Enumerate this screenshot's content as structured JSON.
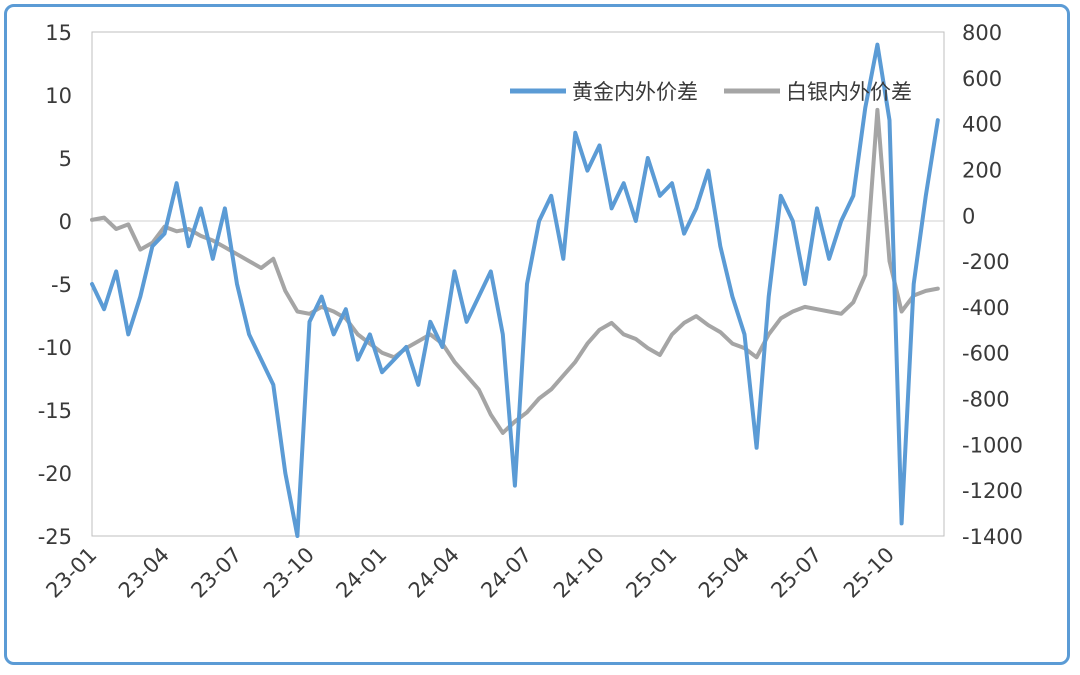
{
  "chart_data": {
    "type": "line",
    "left_axis": {
      "ticks": [
        15,
        10,
        5,
        0,
        -5,
        -10,
        -15,
        -20,
        -25
      ],
      "ylim": [
        -25,
        15
      ]
    },
    "right_axis": {
      "ticks": [
        800,
        600,
        400,
        200,
        0,
        -200,
        -400,
        -600,
        -800,
        -1000,
        -1200,
        -1400
      ],
      "ylim": [
        -1400,
        800
      ]
    },
    "x_ticks": [
      "23-01",
      "23-04",
      "23-07",
      "23-10",
      "24-01",
      "24-04",
      "24-07",
      "24-10",
      "25-01",
      "25-04",
      "25-07",
      "25-10"
    ],
    "legend_position": "top-right",
    "grid": false,
    "series": [
      {
        "name": "黄金内外价差",
        "axis": "left",
        "color": "#5b9bd5",
        "points": [
          [
            "23-01",
            -5
          ],
          [
            "23-01.5",
            -7
          ],
          [
            "23-02",
            -4
          ],
          [
            "23-02.5",
            -9
          ],
          [
            "23-03",
            -6
          ],
          [
            "23-03.5",
            -2
          ],
          [
            "23-04",
            -1
          ],
          [
            "23-04.5",
            3
          ],
          [
            "23-05",
            -2
          ],
          [
            "23-05.5",
            1
          ],
          [
            "23-06",
            -3
          ],
          [
            "23-06.5",
            1
          ],
          [
            "23-07",
            -5
          ],
          [
            "23-07.5",
            -9
          ],
          [
            "23-08",
            -11
          ],
          [
            "23-08.5",
            -13
          ],
          [
            "23-09",
            -20
          ],
          [
            "23-09.5",
            -25
          ],
          [
            "23-10",
            -8
          ],
          [
            "23-10.5",
            -6
          ],
          [
            "23-11",
            -9
          ],
          [
            "23-11.5",
            -7
          ],
          [
            "23-12",
            -11
          ],
          [
            "23-12.5",
            -9
          ],
          [
            "24-01",
            -12
          ],
          [
            "24-01.5",
            -11
          ],
          [
            "24-02",
            -10
          ],
          [
            "24-02.5",
            -13
          ],
          [
            "24-03",
            -8
          ],
          [
            "24-03.5",
            -10
          ],
          [
            "24-04",
            -4
          ],
          [
            "24-04.5",
            -8
          ],
          [
            "24-05",
            -6
          ],
          [
            "24-05.5",
            -4
          ],
          [
            "24-06",
            -9
          ],
          [
            "24-06.5",
            -21
          ],
          [
            "24-07",
            -5
          ],
          [
            "24-07.5",
            0
          ],
          [
            "24-08",
            2
          ],
          [
            "24-08.5",
            -3
          ],
          [
            "24-09",
            7
          ],
          [
            "24-09.5",
            4
          ],
          [
            "24-10",
            6
          ],
          [
            "24-10.5",
            1
          ],
          [
            "24-11",
            3
          ],
          [
            "24-11.5",
            0
          ],
          [
            "24-12",
            5
          ],
          [
            "24-12.5",
            2
          ],
          [
            "25-01",
            3
          ],
          [
            "25-01.5",
            -1
          ],
          [
            "25-02",
            1
          ],
          [
            "25-02.5",
            4
          ],
          [
            "25-03",
            -2
          ],
          [
            "25-03.5",
            -6
          ],
          [
            "25-04",
            -9
          ],
          [
            "25-04.5",
            -18
          ],
          [
            "25-05",
            -6
          ],
          [
            "25-05.5",
            2
          ],
          [
            "25-06",
            0
          ],
          [
            "25-06.5",
            -5
          ],
          [
            "25-07",
            1
          ],
          [
            "25-07.5",
            -3
          ],
          [
            "25-08",
            0
          ],
          [
            "25-08.5",
            2
          ],
          [
            "25-09",
            9
          ],
          [
            "25-09.5",
            14
          ],
          [
            "25-10",
            8
          ],
          [
            "25-10.5",
            -24
          ],
          [
            "25-11",
            -5
          ],
          [
            "25-11.5",
            2
          ],
          [
            "25-12",
            8
          ]
        ]
      },
      {
        "name": "白银内外价差",
        "axis": "right",
        "color": "#a5a5a5",
        "points": [
          [
            "23-01",
            -20
          ],
          [
            "23-01.5",
            -10
          ],
          [
            "23-02",
            -60
          ],
          [
            "23-02.5",
            -40
          ],
          [
            "23-03",
            -150
          ],
          [
            "23-03.5",
            -120
          ],
          [
            "23-04",
            -50
          ],
          [
            "23-04.5",
            -70
          ],
          [
            "23-05",
            -60
          ],
          [
            "23-05.5",
            -90
          ],
          [
            "23-06",
            -110
          ],
          [
            "23-06.5",
            -140
          ],
          [
            "23-07",
            -170
          ],
          [
            "23-07.5",
            -200
          ],
          [
            "23-08",
            -230
          ],
          [
            "23-08.5",
            -190
          ],
          [
            "23-09",
            -330
          ],
          [
            "23-09.5",
            -420
          ],
          [
            "23-10",
            -430
          ],
          [
            "23-10.5",
            -400
          ],
          [
            "23-11",
            -420
          ],
          [
            "23-11.5",
            -450
          ],
          [
            "23-12",
            -520
          ],
          [
            "23-12.5",
            -560
          ],
          [
            "24-01",
            -600
          ],
          [
            "24-01.5",
            -620
          ],
          [
            "24-02",
            -580
          ],
          [
            "24-02.5",
            -550
          ],
          [
            "24-03",
            -520
          ],
          [
            "24-03.5",
            -560
          ],
          [
            "24-04",
            -640
          ],
          [
            "24-04.5",
            -700
          ],
          [
            "24-05",
            -760
          ],
          [
            "24-05.5",
            -870
          ],
          [
            "24-06",
            -950
          ],
          [
            "24-06.5",
            -900
          ],
          [
            "24-07",
            -860
          ],
          [
            "24-07.5",
            -800
          ],
          [
            "24-08",
            -760
          ],
          [
            "24-08.5",
            -700
          ],
          [
            "24-09",
            -640
          ],
          [
            "24-09.5",
            -560
          ],
          [
            "24-10",
            -500
          ],
          [
            "24-10.5",
            -470
          ],
          [
            "24-11",
            -520
          ],
          [
            "24-11.5",
            -540
          ],
          [
            "24-12",
            -580
          ],
          [
            "24-12.5",
            -610
          ],
          [
            "25-01",
            -520
          ],
          [
            "25-01.5",
            -470
          ],
          [
            "25-02",
            -440
          ],
          [
            "25-02.5",
            -480
          ],
          [
            "25-03",
            -510
          ],
          [
            "25-03.5",
            -560
          ],
          [
            "25-04",
            -580
          ],
          [
            "25-04.5",
            -620
          ],
          [
            "25-05",
            -520
          ],
          [
            "25-05.5",
            -450
          ],
          [
            "25-06",
            -420
          ],
          [
            "25-06.5",
            -400
          ],
          [
            "25-07",
            -410
          ],
          [
            "25-07.5",
            -420
          ],
          [
            "25-08",
            -430
          ],
          [
            "25-08.5",
            -380
          ],
          [
            "25-09",
            -260
          ],
          [
            "25-09.5",
            460
          ],
          [
            "25-10",
            -200
          ],
          [
            "25-10.5",
            -420
          ],
          [
            "25-11",
            -350
          ],
          [
            "25-11.5",
            -330
          ],
          [
            "25-12",
            -320
          ]
        ]
      }
    ]
  }
}
